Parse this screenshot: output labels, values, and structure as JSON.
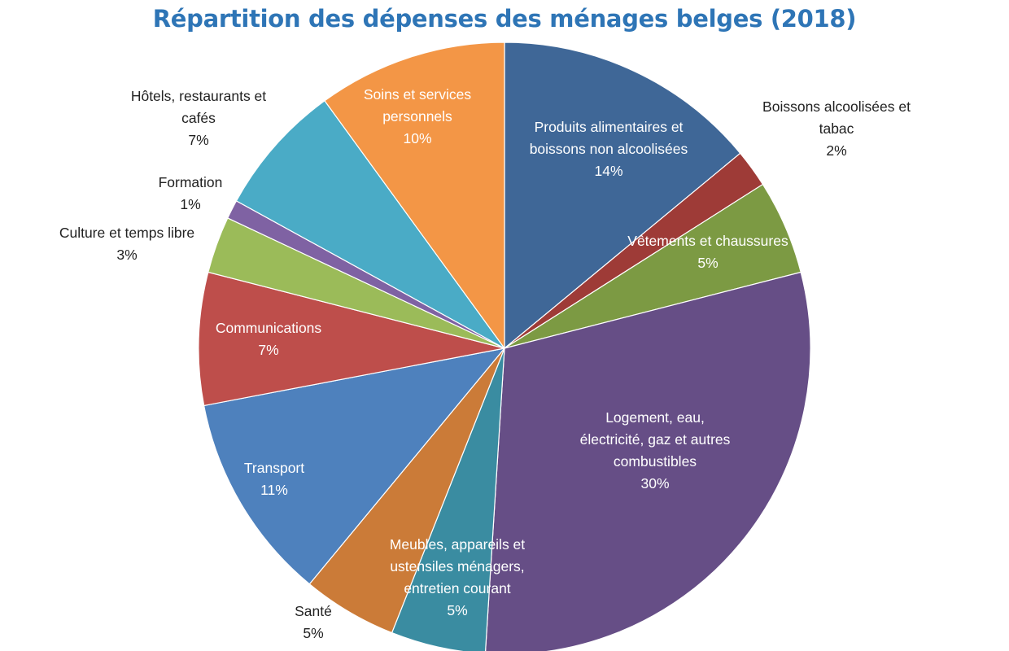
{
  "chart_data": {
    "type": "pie",
    "title": "Répartition des dépenses des ménages belges (2018)",
    "slices": [
      {
        "name": "Produits alimentaires et boissons non alcoolisées",
        "value": 14,
        "label_lines": [
          "Produits alimentaires et",
          "boissons non alcoolisées",
          "14%"
        ],
        "color": "#3F6797",
        "label_placement": "inside"
      },
      {
        "name": "Boissons alcoolisées et tabac",
        "value": 2,
        "label_lines": [
          "Boissons alcoolisées et",
          "tabac",
          "2%"
        ],
        "color": "#9E3B37",
        "label_placement": "outside"
      },
      {
        "name": "Vêtements et chaussures",
        "value": 5,
        "label_lines": [
          "Vêtements et chaussures",
          "5%"
        ],
        "color": "#7C9A43",
        "label_placement": "inside"
      },
      {
        "name": "Logement, eau, électricité, gaz et autres combustibles",
        "value": 30,
        "label_lines": [
          "Logement, eau,",
          "électricité, gaz et autres",
          "combustibles",
          "30%"
        ],
        "color": "#664E86",
        "label_placement": "inside"
      },
      {
        "name": "Meubles, appareils et ustensiles ménagers, entretien courant",
        "value": 5,
        "label_lines": [
          "Meubles, appareils et",
          "ustensiles ménagers,",
          "entretien courant",
          "5%"
        ],
        "color": "#3A8CA1",
        "label_placement": "inside"
      },
      {
        "name": "Santé",
        "value": 5,
        "label_lines": [
          "Santé",
          "5%"
        ],
        "color": "#CB7B38",
        "label_placement": "outside"
      },
      {
        "name": "Transport",
        "value": 11,
        "label_lines": [
          "Transport",
          "11%"
        ],
        "color": "#4E81BD",
        "label_placement": "inside"
      },
      {
        "name": "Communications",
        "value": 7,
        "label_lines": [
          "Communications",
          "7%"
        ],
        "color": "#BE4E4B",
        "label_placement": "inside"
      },
      {
        "name": "Culture et temps libre",
        "value": 3,
        "label_lines": [
          "Culture et temps libre",
          "3%"
        ],
        "color": "#9BBB59",
        "label_placement": "outside"
      },
      {
        "name": "Formation",
        "value": 1,
        "label_lines": [
          "Formation",
          "1%"
        ],
        "color": "#7F62A3",
        "label_placement": "outside"
      },
      {
        "name": "Hôtels, restaurants et cafés",
        "value": 7,
        "label_lines": [
          "Hôtels, restaurants et",
          "cafés",
          "7%"
        ],
        "color": "#4AABC6",
        "label_placement": "outside"
      },
      {
        "name": "Soins et services personnels",
        "value": 10,
        "label_lines": [
          "Soins et services",
          "personnels",
          "10%"
        ],
        "color": "#F39646",
        "label_placement": "inside"
      }
    ],
    "start_angle_deg": 0,
    "direction": "clockwise",
    "legend": "none"
  }
}
